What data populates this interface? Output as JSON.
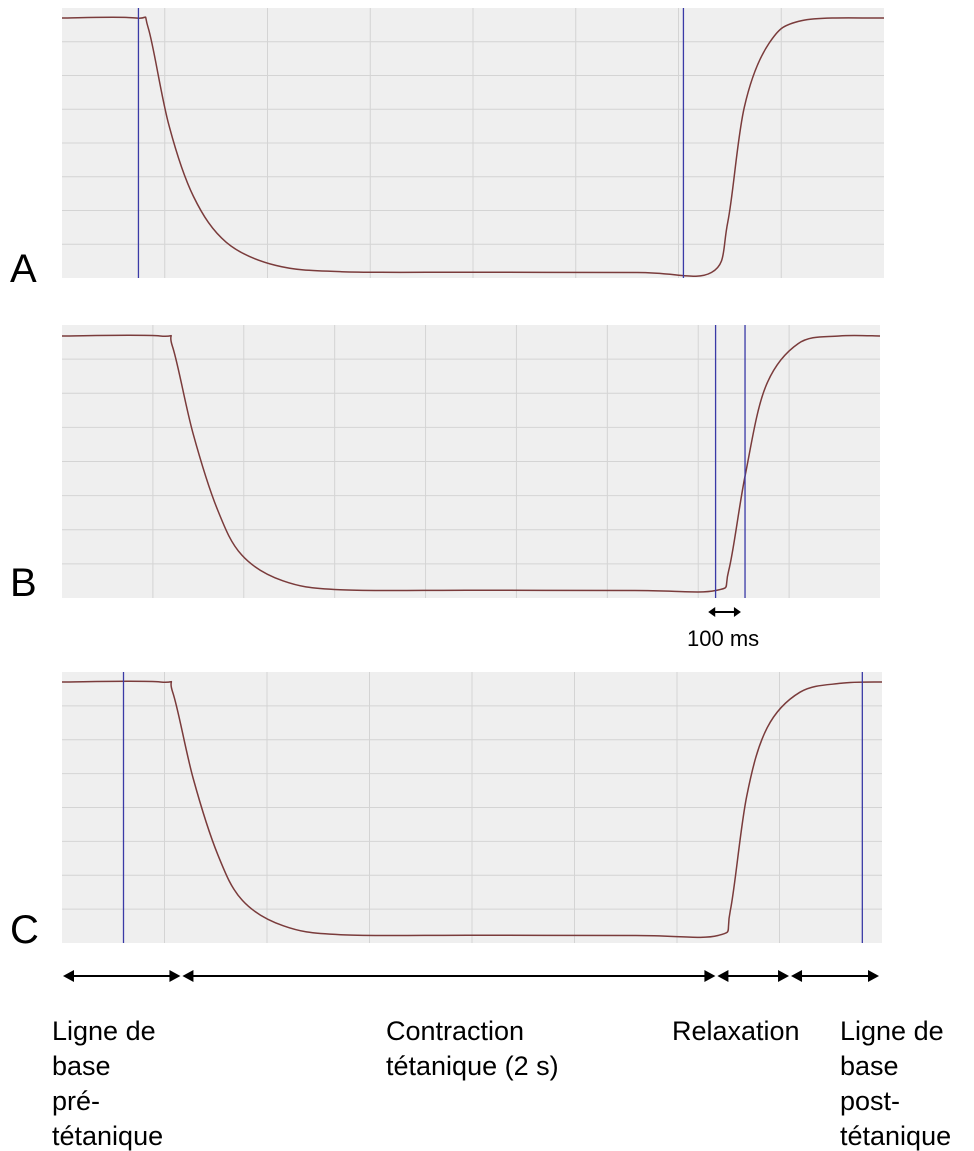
{
  "panels": [
    {
      "letter": "A",
      "colors": {
        "background": "#efefef",
        "grid": "#d4d4d4",
        "trace": "#7a3b3b",
        "marker": "#3a3aa6"
      },
      "trace": [
        [
          0,
          1
        ],
        [
          0.09,
          1
        ],
        [
          0.105,
          0.96
        ],
        [
          0.13,
          0.58
        ],
        [
          0.16,
          0.3
        ],
        [
          0.2,
          0.12
        ],
        [
          0.26,
          0.03
        ],
        [
          0.34,
          0.005
        ],
        [
          0.5,
          0.003
        ],
        [
          0.7,
          0.002
        ],
        [
          0.79,
          0.002
        ],
        [
          0.81,
          0.2
        ],
        [
          0.83,
          0.65
        ],
        [
          0.86,
          0.9
        ],
        [
          0.9,
          0.99
        ],
        [
          1,
          1
        ]
      ],
      "markers": [
        0.093,
        0.756
      ]
    },
    {
      "letter": "B",
      "colors": {
        "background": "#efefef",
        "grid": "#d4d4d4",
        "trace": "#7a3b3b",
        "marker": "#3a3aa6"
      },
      "trace": [
        [
          0,
          1
        ],
        [
          0.12,
          1
        ],
        [
          0.135,
          0.96
        ],
        [
          0.16,
          0.62
        ],
        [
          0.19,
          0.32
        ],
        [
          0.22,
          0.14
        ],
        [
          0.27,
          0.04
        ],
        [
          0.34,
          0.005
        ],
        [
          0.5,
          0.003
        ],
        [
          0.7,
          0.002
        ],
        [
          0.799,
          0.002
        ],
        [
          0.815,
          0.08
        ],
        [
          0.835,
          0.45
        ],
        [
          0.86,
          0.8
        ],
        [
          0.9,
          0.97
        ],
        [
          0.95,
          1
        ],
        [
          1,
          1
        ]
      ],
      "markers": [
        0.799,
        0.835
      ],
      "scale_bar": {
        "label": "100 ms",
        "from": 0.79,
        "to": 0.83
      }
    },
    {
      "letter": "C",
      "colors": {
        "background": "#efefef",
        "grid": "#d4d4d4",
        "trace": "#7a3b3b",
        "marker": "#3a3aa6"
      },
      "trace": [
        [
          0,
          1
        ],
        [
          0.12,
          1
        ],
        [
          0.135,
          0.96
        ],
        [
          0.16,
          0.62
        ],
        [
          0.19,
          0.32
        ],
        [
          0.22,
          0.14
        ],
        [
          0.27,
          0.04
        ],
        [
          0.34,
          0.005
        ],
        [
          0.5,
          0.003
        ],
        [
          0.7,
          0.002
        ],
        [
          0.8,
          0.002
        ],
        [
          0.815,
          0.1
        ],
        [
          0.835,
          0.55
        ],
        [
          0.86,
          0.82
        ],
        [
          0.9,
          0.96
        ],
        [
          0.95,
          0.995
        ],
        [
          1,
          1
        ]
      ],
      "markers": [
        0.075,
        0.976
      ]
    }
  ],
  "phases": [
    {
      "label": "Ligne de\nbase\npré-\ntétanique",
      "from": 0.0,
      "to": 0.146
    },
    {
      "label": "Contraction\ntétanique (2 s)",
      "from": 0.146,
      "to": 0.8
    },
    {
      "label": "Relaxation",
      "from": 0.8,
      "to": 0.89
    },
    {
      "label": "Ligne de\nbase\npost-\ntétanique",
      "from": 0.89,
      "to": 1.0
    }
  ]
}
